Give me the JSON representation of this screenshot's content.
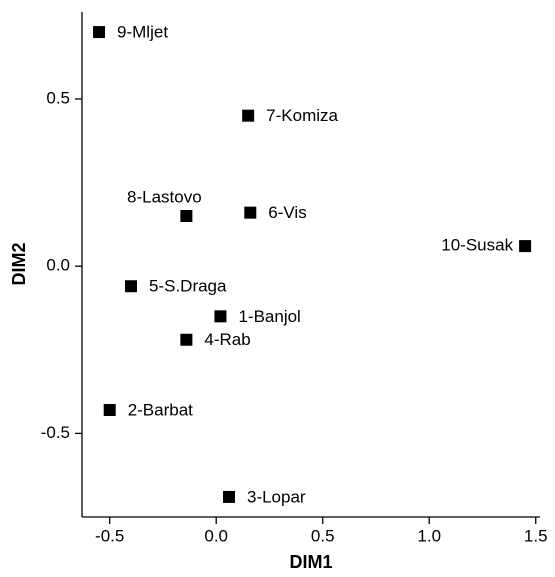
{
  "chart_data": {
    "type": "scatter",
    "x_label": "DIM1",
    "y_label": "DIM2",
    "labels": [
      "9-Mljet",
      "7-Komiza",
      "8-Lastovo",
      "6-Vis",
      "10-Susak",
      "5-S.Draga",
      "1-Banjol",
      "4-Rab",
      "2-Barbat",
      "3-Lopar"
    ],
    "x": [
      -0.55,
      0.15,
      -0.14,
      0.16,
      1.45,
      -0.4,
      0.02,
      -0.14,
      -0.5,
      0.06
    ],
    "y": [
      0.7,
      0.45,
      0.15,
      0.16,
      0.06,
      -0.06,
      -0.15,
      -0.22,
      -0.43,
      -0.69
    ],
    "color": "#000000",
    "xlim": [
      -0.63,
      1.52
    ],
    "ylim": [
      -0.75,
      0.76
    ],
    "xticks": [
      -0.5,
      {
        "value": 0,
        "label": "0.0"
      },
      0.5,
      {
        "value": 1,
        "label": "1.0"
      },
      1.5
    ],
    "yticks": [
      -0.5,
      {
        "value": 0,
        "label": "0.0"
      },
      0.5
    ],
    "grid": false
  }
}
